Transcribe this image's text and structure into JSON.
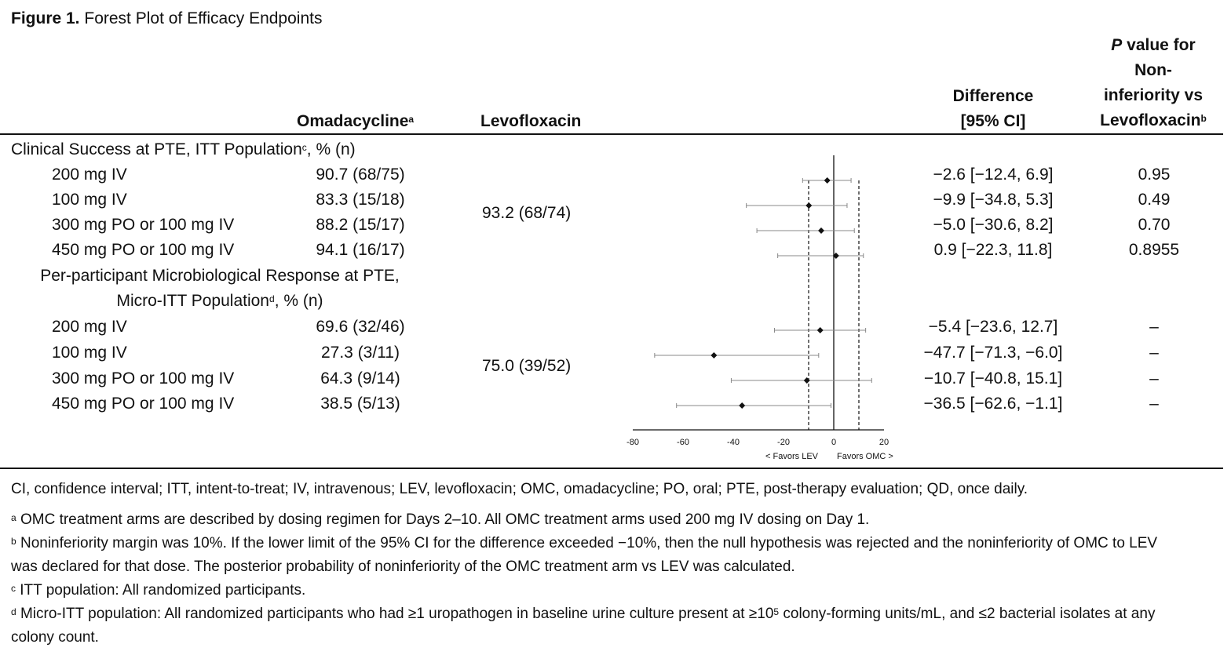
{
  "figure": {
    "label": "Figure 1.",
    "title": "Forest Plot of Efficacy Endpoints"
  },
  "headers": {
    "omadacycline": "Omadacycline",
    "omadacycline_sup": "a",
    "levofloxacin": "Levofloxacin",
    "difference_line1": "Difference",
    "difference_line2": "[95% CI]",
    "pvalue_line1_italic": "P",
    "pvalue_line1_rest": " value for",
    "pvalue_line2": "Non-",
    "pvalue_line3": "inferiority vs",
    "pvalue_line4": "Levofloxacin",
    "pvalue_sup": "b"
  },
  "sections": [
    {
      "title_main": "Clinical Success at PTE, ITT Population",
      "title_sup": "c",
      "title_tail": ", % (n)",
      "levofloxacin": "93.2 (68/74)",
      "rows": [
        {
          "label": "200 mg IV",
          "omc": "90.7 (68/75)",
          "diff": "−2.6 [−12.4, 6.9]",
          "p": "0.95"
        },
        {
          "label": "100 mg IV",
          "omc": "83.3 (15/18)",
          "diff": "−9.9 [−34.8, 5.3]",
          "p": "0.49"
        },
        {
          "label": "300 mg PO or 100 mg IV",
          "omc": "88.2 (15/17)",
          "diff": "−5.0 [−30.6, 8.2]",
          "p": "0.70"
        },
        {
          "label": "450 mg PO or 100 mg IV",
          "omc": "94.1 (16/17)",
          "diff": "0.9 [−22.3, 11.8]",
          "p": "0.8955"
        }
      ]
    },
    {
      "title_line1": "Per-participant Microbiological Response at PTE,",
      "title_main": "Micro-ITT Population",
      "title_sup": "d",
      "title_tail": ", % (n)",
      "levofloxacin": "75.0 (39/52)",
      "rows": [
        {
          "label": "200 mg IV",
          "omc": "69.6 (32/46)",
          "diff": "−5.4 [−23.6, 12.7]",
          "p": "–"
        },
        {
          "label": "100 mg IV",
          "omc": "27.3 (3/11)",
          "diff": "−47.7 [−71.3, −6.0]",
          "p": "–"
        },
        {
          "label": "300 mg PO or 100 mg IV",
          "omc": "64.3 (9/14)",
          "diff": "−10.7 [−40.8, 15.1]",
          "p": "–"
        },
        {
          "label": "450 mg PO or 100 mg IV",
          "omc": "38.5 (5/13)",
          "diff": "−36.5 [−62.6, −1.1]",
          "p": "–"
        }
      ]
    }
  ],
  "chart_data": {
    "type": "forest",
    "x_ticks": [
      -80,
      -60,
      -40,
      -20,
      0,
      20
    ],
    "x_tick_labels": [
      "-80",
      "-60",
      "-40",
      "-20",
      "0",
      "20"
    ],
    "xlim": [
      -80,
      20
    ],
    "reference_line": 0,
    "margin_lines": [
      -10,
      10
    ],
    "left_label": "< Favors LEV",
    "right_label": "Favors OMC >",
    "points": [
      {
        "estimate": -2.6,
        "lower": -12.4,
        "upper": 6.9
      },
      {
        "estimate": -9.9,
        "lower": -34.8,
        "upper": 5.3
      },
      {
        "estimate": -5.0,
        "lower": -30.6,
        "upper": 8.2
      },
      {
        "estimate": 0.9,
        "lower": -22.3,
        "upper": 11.8
      },
      {
        "estimate": -5.4,
        "lower": -23.6,
        "upper": 12.7
      },
      {
        "estimate": -47.7,
        "lower": -71.3,
        "upper": -6.0
      },
      {
        "estimate": -10.7,
        "lower": -40.8,
        "upper": 15.1
      },
      {
        "estimate": -36.5,
        "lower": -62.6,
        "upper": -1.1
      }
    ]
  },
  "footnotes": {
    "abbreviations": "CI, confidence interval; ITT, intent-to-treat; IV, intravenous; LEV, levofloxacin; OMC, omadacycline; PO, oral; PTE, post-therapy evaluation; QD, once daily.",
    "a_mark": "a",
    "a_text": " OMC treatment arms are described by dosing regimen for Days 2–10. All OMC treatment arms used 200 mg IV dosing on Day 1.",
    "b_mark": "b",
    "b_text": " Noninferiority margin was 10%. If the lower limit of the 95% CI for the difference exceeded −10%, then the null hypothesis was rejected and the noninferiority of OMC to LEV was declared for that dose. The posterior probability of noninferiority of the OMC treatment arm vs LEV was calculated.",
    "c_mark": "c",
    "c_text": " ITT population: All randomized participants.",
    "d_mark": "d",
    "d_text_1": " Micro-ITT population: All randomized participants who had ≥1 uropathogen in baseline urine culture present at ≥10",
    "d_sup": "5",
    "d_text_2": " colony-forming units/mL, and ≤2 bacterial isolates at any colony count."
  }
}
